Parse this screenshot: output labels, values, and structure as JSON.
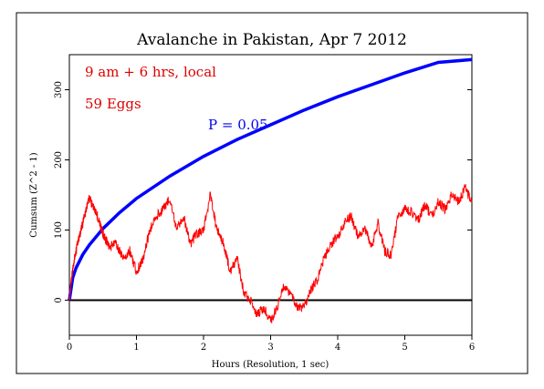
{
  "chart_data": {
    "type": "line",
    "title": "Avalanche in Pakistan, Apr 7 2012",
    "xlabel": "Hours (Resolution, 1 sec)",
    "ylabel": "Cumsum (Z^2 - 1)",
    "xlim": [
      0,
      6
    ],
    "ylim": [
      -50,
      350
    ],
    "x_ticks": [
      "0",
      "1",
      "2",
      "3",
      "4",
      "5",
      "6"
    ],
    "y_ticks": [
      "0",
      "100",
      "200",
      "300"
    ],
    "annotations": {
      "period": "9 am + 6 hrs, local",
      "eggs": "59 Eggs",
      "p_label": "P = 0.05"
    },
    "colors": {
      "cumsum": "#ff0000",
      "p_curve": "#0000ff",
      "zero_line": "#000000",
      "frame": "#000000"
    },
    "series": [
      {
        "role": "cumsum",
        "x": [
          0,
          0.05,
          0.1,
          0.15,
          0.2,
          0.25,
          0.3,
          0.35,
          0.4,
          0.45,
          0.5,
          0.55,
          0.6,
          0.7,
          0.8,
          0.9,
          1.0,
          1.1,
          1.2,
          1.3,
          1.4,
          1.5,
          1.6,
          1.7,
          1.8,
          1.9,
          2.0,
          2.1,
          2.2,
          2.3,
          2.4,
          2.5,
          2.6,
          2.7,
          2.8,
          2.9,
          3.0,
          3.1,
          3.2,
          3.3,
          3.4,
          3.5,
          3.6,
          3.7,
          3.8,
          3.9,
          4.0,
          4.1,
          4.2,
          4.3,
          4.4,
          4.5,
          4.6,
          4.7,
          4.8,
          4.9,
          5.0,
          5.1,
          5.2,
          5.3,
          5.4,
          5.5,
          5.6,
          5.7,
          5.8,
          5.9,
          6.0
        ],
        "y": [
          0,
          45,
          70,
          90,
          110,
          130,
          145,
          135,
          125,
          110,
          95,
          85,
          75,
          80,
          60,
          70,
          40,
          60,
          100,
          120,
          130,
          145,
          100,
          120,
          80,
          95,
          100,
          150,
          100,
          80,
          40,
          60,
          10,
          0,
          -20,
          -10,
          -30,
          -10,
          20,
          10,
          -10,
          -10,
          15,
          30,
          60,
          80,
          90,
          110,
          120,
          90,
          105,
          75,
          110,
          70,
          65,
          120,
          130,
          125,
          115,
          135,
          120,
          140,
          130,
          150,
          140,
          160,
          140
        ]
      },
      {
        "name": "P = 0.05",
        "role": "p_curve",
        "x": [
          0,
          0.05,
          0.1,
          0.2,
          0.3,
          0.5,
          0.75,
          1.0,
          1.5,
          2.0,
          2.5,
          3.0,
          3.5,
          4.0,
          4.5,
          5.0,
          5.5,
          6.0
        ],
        "y": [
          0,
          32,
          46,
          65,
          79,
          102,
          125,
          145,
          177,
          205,
          229,
          250,
          271,
          290,
          307,
          324,
          339,
          343
        ]
      }
    ]
  }
}
